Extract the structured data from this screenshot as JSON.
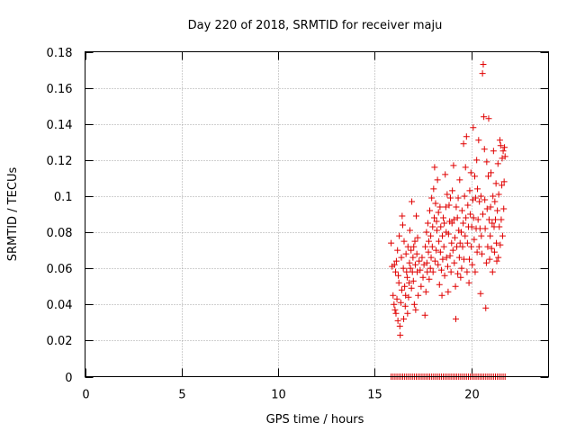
{
  "chart_data": {
    "type": "scatter",
    "title": "Day 220 of 2018, SRMTID for receiver maju",
    "xlabel": "GPS time / hours",
    "ylabel": "SRMTID / TECUs",
    "xlim": [
      0,
      24
    ],
    "ylim": [
      0,
      0.18
    ],
    "xticks": [
      0,
      5,
      10,
      15,
      20
    ],
    "xtick_labels": [
      "0",
      "5",
      "10",
      "15",
      "20"
    ],
    "yticks": [
      0,
      0.02,
      0.04,
      0.06,
      0.08,
      0.1,
      0.12,
      0.14,
      0.16,
      0.18
    ],
    "ytick_labels": [
      "0",
      "0.02",
      "0.04",
      "0.06",
      "0.08",
      "0.1",
      "0.12",
      "0.14",
      "0.16",
      "0.18"
    ],
    "grid": true,
    "marker": "+",
    "color": "#e00000",
    "series": [
      {
        "name": "SRMTID",
        "points": [
          [
            15.85,
            0.074
          ],
          [
            15.9,
            0.061
          ],
          [
            15.95,
            0.045
          ],
          [
            16.0,
            0.04
          ],
          [
            16.02,
            0.062
          ],
          [
            16.05,
            0.037
          ],
          [
            16.08,
            0.058
          ],
          [
            16.1,
            0.035
          ],
          [
            16.12,
            0.064
          ],
          [
            16.15,
            0.043
          ],
          [
            16.18,
            0.07
          ],
          [
            16.2,
            0.031
          ],
          [
            16.22,
            0.056
          ],
          [
            16.25,
            0.052
          ],
          [
            16.27,
            0.078
          ],
          [
            16.3,
            0.028
          ],
          [
            16.32,
            0.023
          ],
          [
            16.35,
            0.041
          ],
          [
            16.38,
            0.066
          ],
          [
            16.4,
            0.048
          ],
          [
            16.42,
            0.089
          ],
          [
            16.45,
            0.084
          ],
          [
            16.48,
            0.06
          ],
          [
            16.5,
            0.032
          ],
          [
            16.52,
            0.075
          ],
          [
            16.55,
            0.05
          ],
          [
            16.58,
            0.039
          ],
          [
            16.6,
            0.045
          ],
          [
            16.62,
            0.068
          ],
          [
            16.65,
            0.058
          ],
          [
            16.68,
            0.055
          ],
          [
            16.7,
            0.035
          ],
          [
            16.72,
            0.072
          ],
          [
            16.75,
            0.044
          ],
          [
            16.78,
            0.052
          ],
          [
            16.8,
            0.063
          ],
          [
            16.82,
            0.081
          ],
          [
            16.85,
            0.06
          ],
          [
            16.88,
            0.07
          ],
          [
            16.9,
            0.049
          ],
          [
            16.92,
            0.097
          ],
          [
            16.95,
            0.058
          ],
          [
            16.98,
            0.066
          ],
          [
            17.0,
            0.053
          ],
          [
            17.02,
            0.072
          ],
          [
            17.05,
            0.04
          ],
          [
            17.08,
            0.075
          ],
          [
            17.1,
            0.062
          ],
          [
            17.12,
            0.037
          ],
          [
            17.15,
            0.089
          ],
          [
            17.18,
            0.068
          ],
          [
            17.2,
            0.058
          ],
          [
            17.22,
            0.077
          ],
          [
            17.25,
            0.045
          ],
          [
            17.3,
            0.064
          ],
          [
            17.35,
            0.059
          ],
          [
            17.4,
            0.05
          ],
          [
            17.45,
            0.066
          ],
          [
            17.5,
            0.055
          ],
          [
            17.55,
            0.062
          ],
          [
            17.6,
            0.034
          ],
          [
            17.62,
            0.072
          ],
          [
            17.65,
            0.047
          ],
          [
            17.68,
            0.08
          ],
          [
            17.7,
            0.063
          ],
          [
            17.72,
            0.058
          ],
          [
            17.75,
            0.085
          ],
          [
            17.78,
            0.069
          ],
          [
            17.8,
            0.075
          ],
          [
            17.82,
            0.054
          ],
          [
            17.85,
            0.092
          ],
          [
            17.88,
            0.06
          ],
          [
            17.9,
            0.078
          ],
          [
            17.92,
            0.066
          ],
          [
            17.95,
            0.099
          ],
          [
            17.98,
            0.072
          ],
          [
            18.0,
            0.083
          ],
          [
            18.02,
            0.058
          ],
          [
            18.05,
            0.104
          ],
          [
            18.08,
            0.088
          ],
          [
            18.1,
            0.116
          ],
          [
            18.12,
            0.064
          ],
          [
            18.15,
            0.096
          ],
          [
            18.18,
            0.07
          ],
          [
            18.2,
            0.086
          ],
          [
            18.22,
            0.081
          ],
          [
            18.25,
            0.109
          ],
          [
            18.28,
            0.062
          ],
          [
            18.3,
            0.091
          ],
          [
            18.32,
            0.075
          ],
          [
            18.35,
            0.051
          ],
          [
            18.38,
            0.094
          ],
          [
            18.4,
            0.069
          ],
          [
            18.42,
            0.083
          ],
          [
            18.45,
            0.059
          ],
          [
            18.48,
            0.045
          ],
          [
            18.5,
            0.078
          ],
          [
            18.52,
            0.065
          ],
          [
            18.55,
            0.088
          ],
          [
            18.58,
            0.072
          ],
          [
            18.6,
            0.085
          ],
          [
            18.62,
            0.056
          ],
          [
            18.65,
            0.112
          ],
          [
            18.68,
            0.094
          ],
          [
            18.7,
            0.08
          ],
          [
            18.72,
            0.066
          ],
          [
            18.75,
            0.101
          ],
          [
            18.78,
            0.061
          ],
          [
            18.8,
            0.047
          ],
          [
            18.82,
            0.079
          ],
          [
            18.85,
            0.095
          ],
          [
            18.88,
            0.086
          ],
          [
            18.9,
            0.067
          ],
          [
            18.92,
            0.099
          ],
          [
            18.95,
            0.058
          ],
          [
            18.98,
            0.074
          ],
          [
            19.0,
            0.085
          ],
          [
            19.02,
            0.103
          ],
          [
            19.05,
            0.07
          ],
          [
            19.08,
            0.117
          ],
          [
            19.1,
            0.087
          ],
          [
            19.12,
            0.063
          ],
          [
            19.15,
            0.077
          ],
          [
            19.18,
            0.05
          ],
          [
            19.2,
            0.032
          ],
          [
            19.22,
            0.094
          ],
          [
            19.25,
            0.072
          ],
          [
            19.28,
            0.088
          ],
          [
            19.3,
            0.057
          ],
          [
            19.32,
            0.099
          ],
          [
            19.35,
            0.081
          ],
          [
            19.38,
            0.066
          ],
          [
            19.4,
            0.109
          ],
          [
            19.42,
            0.074
          ],
          [
            19.45,
            0.055
          ],
          [
            19.48,
            0.08
          ],
          [
            19.5,
            0.06
          ],
          [
            19.52,
            0.092
          ],
          [
            19.55,
            0.072
          ],
          [
            19.58,
            0.085
          ],
          [
            19.6,
            0.129
          ],
          [
            19.62,
            0.065
          ],
          [
            19.65,
            0.1
          ],
          [
            19.68,
            0.078
          ],
          [
            19.7,
            0.116
          ],
          [
            19.72,
            0.088
          ],
          [
            19.75,
            0.133
          ],
          [
            19.78,
            0.058
          ],
          [
            19.8,
            0.074
          ],
          [
            19.82,
            0.095
          ],
          [
            19.85,
            0.083
          ],
          [
            19.88,
            0.052
          ],
          [
            19.9,
            0.065
          ],
          [
            19.92,
            0.103
          ],
          [
            19.95,
            0.09
          ],
          [
            19.98,
            0.113
          ],
          [
            20.0,
            0.072
          ],
          [
            20.02,
            0.083
          ],
          [
            20.05,
            0.062
          ],
          [
            20.08,
            0.098
          ],
          [
            20.1,
            0.138
          ],
          [
            20.12,
            0.088
          ],
          [
            20.15,
            0.076
          ],
          [
            20.18,
            0.111
          ],
          [
            20.2,
            0.058
          ],
          [
            20.22,
            0.099
          ],
          [
            20.25,
            0.082
          ],
          [
            20.28,
            0.12
          ],
          [
            20.3,
            0.069
          ],
          [
            20.32,
            0.104
          ],
          [
            20.35,
            0.087
          ],
          [
            20.38,
            0.131
          ],
          [
            20.4,
            0.072
          ],
          [
            20.42,
            0.097
          ],
          [
            20.45,
            0.082
          ],
          [
            20.48,
            0.046
          ],
          [
            20.5,
            0.1
          ],
          [
            20.52,
            0.078
          ],
          [
            20.55,
            0.068
          ],
          [
            20.58,
            0.168
          ],
          [
            20.6,
            0.09
          ],
          [
            20.62,
            0.173
          ],
          [
            20.65,
            0.144
          ],
          [
            20.68,
            0.126
          ],
          [
            20.7,
            0.098
          ],
          [
            20.72,
            0.082
          ],
          [
            20.75,
            0.038
          ],
          [
            20.78,
            0.063
          ],
          [
            20.8,
            0.119
          ],
          [
            20.82,
            0.093
          ],
          [
            20.85,
            0.072
          ],
          [
            20.88,
            0.111
          ],
          [
            20.9,
            0.143
          ],
          [
            20.92,
            0.087
          ],
          [
            20.95,
            0.065
          ],
          [
            20.98,
            0.078
          ],
          [
            21.0,
            0.094
          ],
          [
            21.02,
            0.113
          ],
          [
            21.05,
            0.071
          ],
          [
            21.08,
            0.085
          ],
          [
            21.1,
            0.058
          ],
          [
            21.12,
            0.1
          ],
          [
            21.15,
            0.125
          ],
          [
            21.18,
            0.083
          ],
          [
            21.2,
            0.069
          ],
          [
            21.22,
            0.097
          ],
          [
            21.25,
            0.087
          ],
          [
            21.28,
            0.107
          ],
          [
            21.3,
            0.074
          ],
          [
            21.32,
            0.064
          ],
          [
            21.35,
            0.092
          ],
          [
            21.38,
            0.118
          ],
          [
            21.4,
            0.066
          ],
          [
            21.42,
            0.101
          ],
          [
            21.45,
            0.083
          ],
          [
            21.48,
            0.131
          ],
          [
            21.5,
            0.073
          ],
          [
            21.52,
            0.128
          ],
          [
            21.55,
            0.087
          ],
          [
            21.58,
            0.106
          ],
          [
            21.6,
            0.121
          ],
          [
            21.62,
            0.078
          ],
          [
            21.65,
            0.125
          ],
          [
            21.68,
            0.093
          ],
          [
            21.7,
            0.108
          ],
          [
            21.72,
            0.127
          ],
          [
            21.75,
            0.122
          ]
        ]
      }
    ],
    "zero_points_x": [
      15.85,
      15.95,
      16.05,
      16.15,
      16.25,
      16.35,
      16.45,
      16.55,
      16.65,
      16.75,
      16.85,
      16.95,
      17.05,
      17.15,
      17.25,
      17.35,
      17.45,
      17.55,
      17.65,
      17.75,
      17.85,
      17.95,
      18.05,
      18.15,
      18.25,
      18.35,
      18.45,
      18.55,
      18.65,
      18.75,
      18.85,
      18.95,
      19.05,
      19.15,
      19.25,
      19.35,
      19.45,
      19.55,
      19.65,
      19.75,
      19.85,
      19.95,
      20.05,
      20.15,
      20.25,
      20.35,
      20.45,
      20.55,
      20.65,
      20.75,
      20.85,
      20.95,
      21.05,
      21.15,
      21.25,
      21.35,
      21.45,
      21.55,
      21.65,
      21.75
    ]
  }
}
